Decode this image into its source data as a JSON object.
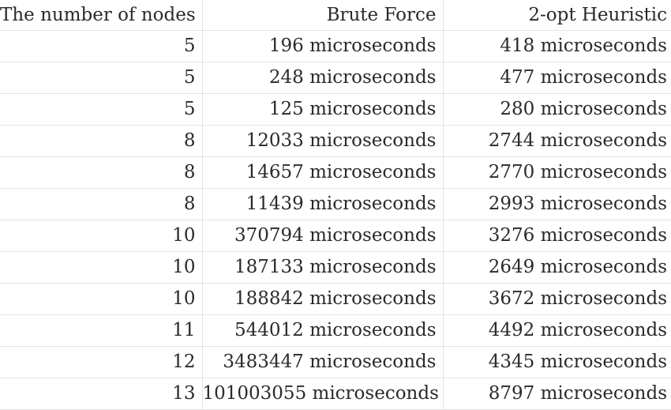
{
  "table": {
    "headers": [
      "The number of nodes",
      "Brute Force",
      "2-opt Heuristic"
    ],
    "rows": [
      [
        "5",
        "196 microseconds",
        "418 microseconds"
      ],
      [
        "5",
        "248 microseconds",
        "477 microseconds"
      ],
      [
        "5",
        "125 microseconds",
        "280 microseconds"
      ],
      [
        "8",
        "12033 microseconds",
        "2744 microseconds"
      ],
      [
        "8",
        "14657 microseconds",
        "2770 microseconds"
      ],
      [
        "8",
        "11439 microseconds",
        "2993 microseconds"
      ],
      [
        "10",
        "370794 microseconds",
        "3276 microseconds"
      ],
      [
        "10",
        "187133 microseconds",
        "2649 microseconds"
      ],
      [
        "10",
        "188842 microseconds",
        "3672 microseconds"
      ],
      [
        "11",
        "544012 microseconds",
        "4492 microseconds"
      ],
      [
        "12",
        "3483447 microseconds",
        "4345 microseconds"
      ],
      [
        "13",
        "101003055 microseconds",
        "8797 microseconds"
      ]
    ]
  }
}
